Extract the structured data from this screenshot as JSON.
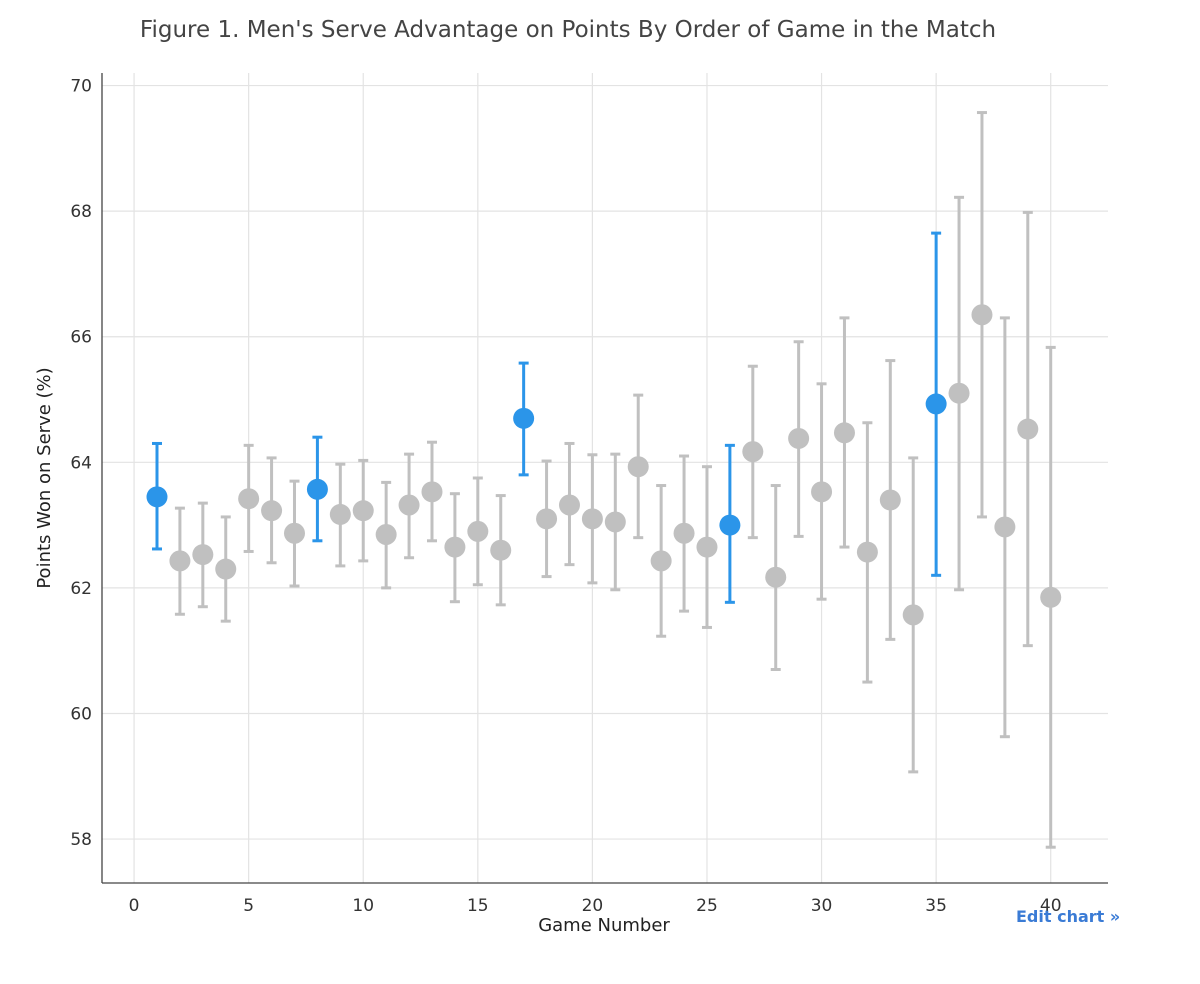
{
  "chart_data": {
    "type": "scatter",
    "title": "Figure 1. Men's Serve Advantage on Points By Order of Game in the Match",
    "xlabel": "Game Number",
    "ylabel": "Points Won on Serve (%)",
    "xlim": [
      -1.4,
      42.5
    ],
    "ylim": [
      57.3,
      70.2
    ],
    "xticks": [
      "0",
      "5",
      "10",
      "15",
      "20",
      "25",
      "30",
      "35",
      "40"
    ],
    "yticks": [
      "58",
      "60",
      "62",
      "64",
      "66",
      "68",
      "70"
    ],
    "grid": true,
    "colors": {
      "highlight": "#2b95e9",
      "normal": "#c0c0c0"
    },
    "points": [
      {
        "x": 1,
        "y": 63.45,
        "lo": 62.62,
        "hi": 64.3,
        "highlight": true
      },
      {
        "x": 2,
        "y": 62.43,
        "lo": 61.58,
        "hi": 63.27,
        "highlight": false
      },
      {
        "x": 3,
        "y": 62.53,
        "lo": 61.7,
        "hi": 63.35,
        "highlight": false
      },
      {
        "x": 4,
        "y": 62.3,
        "lo": 61.47,
        "hi": 63.13,
        "highlight": false
      },
      {
        "x": 5,
        "y": 63.42,
        "lo": 62.58,
        "hi": 64.27,
        "highlight": false
      },
      {
        "x": 6,
        "y": 63.23,
        "lo": 62.4,
        "hi": 64.07,
        "highlight": false
      },
      {
        "x": 7,
        "y": 62.87,
        "lo": 62.03,
        "hi": 63.7,
        "highlight": false
      },
      {
        "x": 8,
        "y": 63.57,
        "lo": 62.75,
        "hi": 64.4,
        "highlight": true
      },
      {
        "x": 9,
        "y": 63.17,
        "lo": 62.35,
        "hi": 63.97,
        "highlight": false
      },
      {
        "x": 10,
        "y": 63.23,
        "lo": 62.43,
        "hi": 64.03,
        "highlight": false
      },
      {
        "x": 11,
        "y": 62.85,
        "lo": 62.0,
        "hi": 63.68,
        "highlight": false
      },
      {
        "x": 12,
        "y": 63.32,
        "lo": 62.48,
        "hi": 64.13,
        "highlight": false
      },
      {
        "x": 13,
        "y": 63.53,
        "lo": 62.75,
        "hi": 64.32,
        "highlight": false
      },
      {
        "x": 14,
        "y": 62.65,
        "lo": 61.78,
        "hi": 63.5,
        "highlight": false
      },
      {
        "x": 15,
        "y": 62.9,
        "lo": 62.05,
        "hi": 63.75,
        "highlight": false
      },
      {
        "x": 16,
        "y": 62.6,
        "lo": 61.73,
        "hi": 63.47,
        "highlight": false
      },
      {
        "x": 17,
        "y": 64.7,
        "lo": 63.8,
        "hi": 65.58,
        "highlight": true
      },
      {
        "x": 18,
        "y": 63.1,
        "lo": 62.18,
        "hi": 64.02,
        "highlight": false
      },
      {
        "x": 19,
        "y": 63.32,
        "lo": 62.37,
        "hi": 64.3,
        "highlight": false
      },
      {
        "x": 20,
        "y": 63.1,
        "lo": 62.08,
        "hi": 64.12,
        "highlight": false
      },
      {
        "x": 21,
        "y": 63.05,
        "lo": 61.97,
        "hi": 64.13,
        "highlight": false
      },
      {
        "x": 22,
        "y": 63.93,
        "lo": 62.8,
        "hi": 65.07,
        "highlight": false
      },
      {
        "x": 23,
        "y": 62.43,
        "lo": 61.23,
        "hi": 63.63,
        "highlight": false
      },
      {
        "x": 24,
        "y": 62.87,
        "lo": 61.63,
        "hi": 64.1,
        "highlight": false
      },
      {
        "x": 25,
        "y": 62.65,
        "lo": 61.37,
        "hi": 63.93,
        "highlight": false
      },
      {
        "x": 26,
        "y": 63.0,
        "lo": 61.77,
        "hi": 64.27,
        "highlight": true
      },
      {
        "x": 27,
        "y": 64.17,
        "lo": 62.8,
        "hi": 65.53,
        "highlight": false
      },
      {
        "x": 28,
        "y": 62.17,
        "lo": 60.7,
        "hi": 63.63,
        "highlight": false
      },
      {
        "x": 29,
        "y": 64.38,
        "lo": 62.82,
        "hi": 65.92,
        "highlight": false
      },
      {
        "x": 30,
        "y": 63.53,
        "lo": 61.82,
        "hi": 65.25,
        "highlight": false
      },
      {
        "x": 31,
        "y": 64.47,
        "lo": 62.65,
        "hi": 66.3,
        "highlight": false
      },
      {
        "x": 32,
        "y": 62.57,
        "lo": 60.5,
        "hi": 64.63,
        "highlight": false
      },
      {
        "x": 33,
        "y": 63.4,
        "lo": 61.18,
        "hi": 65.62,
        "highlight": false
      },
      {
        "x": 34,
        "y": 61.57,
        "lo": 59.07,
        "hi": 64.07,
        "highlight": false
      },
      {
        "x": 35,
        "y": 64.93,
        "lo": 62.2,
        "hi": 67.65,
        "highlight": true
      },
      {
        "x": 36,
        "y": 65.1,
        "lo": 61.97,
        "hi": 68.22,
        "highlight": false
      },
      {
        "x": 37,
        "y": 66.35,
        "lo": 63.13,
        "hi": 69.57,
        "highlight": false
      },
      {
        "x": 38,
        "y": 62.97,
        "lo": 59.63,
        "hi": 66.3,
        "highlight": false
      },
      {
        "x": 39,
        "y": 64.53,
        "lo": 61.08,
        "hi": 67.98,
        "highlight": false
      },
      {
        "x": 40,
        "y": 61.85,
        "lo": 57.87,
        "hi": 65.83,
        "highlight": false
      }
    ]
  },
  "edit_link": "Edit chart »"
}
